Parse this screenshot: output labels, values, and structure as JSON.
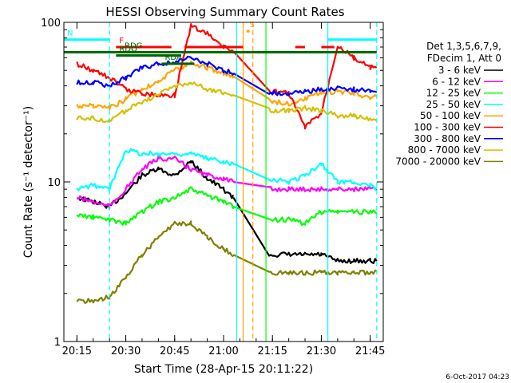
{
  "chart_data": {
    "type": "line",
    "title": "HESSI Observing Summary Count Rates",
    "xlabel": "Start Time (28-Apr-15 20:11:22)",
    "ylabel": "Count Rate (s⁻¹ detector⁻¹)",
    "y_scale": "log",
    "ylim": [
      1,
      100
    ],
    "xlim": [
      "20:11",
      "21:49"
    ],
    "x_ticks": [
      "20:15",
      "20:30",
      "20:45",
      "21:00",
      "21:15",
      "21:30",
      "21:45"
    ],
    "y_ticks": [
      "1",
      "10",
      "100"
    ],
    "grid": false,
    "legend_header": [
      "Det 1,3,5,6,7,9,",
      "FDecim 1, Att 0"
    ],
    "legend_position": "right",
    "timestamp": "6-Oct-2017 04:23",
    "gaps": [
      {
        "from": "21:04",
        "to": "21:13"
      }
    ],
    "series": [
      {
        "name": "3 - 6 keV",
        "color": "#000000",
        "x": [
          "20:15",
          "20:20",
          "20:25",
          "20:30",
          "20:35",
          "20:40",
          "20:45",
          "20:50",
          "20:55",
          "21:00",
          "21:03",
          "21:14",
          "21:20",
          "21:25",
          "21:30",
          "21:35",
          "21:40",
          "21:45",
          "21:47"
        ],
        "values": [
          8.0,
          7.5,
          7.0,
          8.5,
          11.0,
          12.0,
          11.0,
          13.5,
          10.5,
          9.0,
          8.0,
          3.5,
          3.5,
          3.5,
          3.5,
          3.2,
          3.2,
          3.2,
          3.2
        ]
      },
      {
        "name": "6 - 12 keV",
        "color": "#ff00ff",
        "x": [
          "20:15",
          "20:20",
          "20:25",
          "20:30",
          "20:35",
          "20:40",
          "20:45",
          "20:50",
          "20:55",
          "21:00",
          "21:03",
          "21:14",
          "21:20",
          "21:25",
          "21:30",
          "21:35",
          "21:40",
          "21:45",
          "21:47"
        ],
        "values": [
          8.0,
          7.5,
          7.0,
          9.0,
          12.0,
          14.0,
          14.0,
          12.0,
          11.0,
          10.5,
          10.0,
          9.0,
          9.0,
          9.0,
          9.0,
          9.0,
          9.0,
          9.0,
          9.0
        ]
      },
      {
        "name": "12 - 25 keV",
        "color": "#00ff00",
        "x": [
          "20:15",
          "20:20",
          "20:25",
          "20:30",
          "20:35",
          "20:40",
          "20:45",
          "20:50",
          "20:55",
          "21:00",
          "21:03",
          "21:14",
          "21:20",
          "21:25",
          "21:30",
          "21:35",
          "21:40",
          "21:45",
          "21:47"
        ],
        "values": [
          6.2,
          6.0,
          5.8,
          5.5,
          6.5,
          7.5,
          8.0,
          9.0,
          8.2,
          7.5,
          7.0,
          5.8,
          5.8,
          5.5,
          6.5,
          6.5,
          6.5,
          6.5,
          6.5
        ]
      },
      {
        "name": "25 - 50 keV",
        "color": "#00ffff",
        "x": [
          "20:15",
          "20:20",
          "20:25",
          "20:30",
          "20:35",
          "20:40",
          "20:45",
          "20:50",
          "20:55",
          "21:00",
          "21:03",
          "21:14",
          "21:20",
          "21:25",
          "21:30",
          "21:35",
          "21:40",
          "21:45",
          "21:47"
        ],
        "values": [
          9.0,
          9.5,
          9.0,
          16.0,
          15.0,
          15.0,
          15.0,
          15.0,
          14.0,
          13.5,
          13.0,
          10.5,
          10.0,
          11.0,
          13.0,
          10.0,
          10.0,
          9.5,
          9.0
        ]
      },
      {
        "name": "50 - 100 keV",
        "color": "#ffa500",
        "x": [
          "20:15",
          "20:20",
          "20:25",
          "20:30",
          "20:35",
          "20:40",
          "20:45",
          "20:50",
          "20:55",
          "21:00",
          "21:03",
          "21:14",
          "21:20",
          "21:25",
          "21:30",
          "21:35",
          "21:40",
          "21:45",
          "21:47"
        ],
        "values": [
          30.0,
          30.0,
          29.0,
          33.0,
          38.0,
          43.0,
          50.0,
          56.0,
          52.0,
          48.0,
          46.0,
          32.0,
          31.0,
          33.0,
          36.0,
          37.0,
          36.0,
          34.0,
          34.0
        ]
      },
      {
        "name": "100 - 300 keV",
        "color": "#ff0000",
        "x": [
          "20:15",
          "20:20",
          "20:25",
          "20:30",
          "20:35",
          "20:40",
          "20:45",
          "20:50",
          "20:55",
          "21:00",
          "21:03",
          "21:14",
          "21:20",
          "21:25",
          "21:30",
          "21:35",
          "21:40",
          "21:45",
          "21:47"
        ],
        "values": [
          55.0,
          50.0,
          45.0,
          38.0,
          36.0,
          35.0,
          35.0,
          95.0,
          85.0,
          70.0,
          66.0,
          37.0,
          36.0,
          22.0,
          27.0,
          72.0,
          60.0,
          52.0,
          52.0
        ]
      },
      {
        "name": "300 - 800 keV",
        "color": "#0000ff",
        "x": [
          "20:15",
          "20:20",
          "20:25",
          "20:30",
          "20:35",
          "20:40",
          "20:45",
          "20:50",
          "20:55",
          "21:00",
          "21:03",
          "21:14",
          "21:20",
          "21:25",
          "21:30",
          "21:35",
          "21:40",
          "21:45",
          "21:47"
        ],
        "values": [
          42.0,
          42.0,
          40.0,
          45.0,
          52.0,
          55.0,
          56.0,
          60.0,
          55.0,
          50.0,
          48.0,
          36.0,
          36.0,
          37.0,
          38.0,
          39.0,
          38.0,
          37.0,
          37.0
        ]
      },
      {
        "name": "800 - 7000 keV",
        "color": "#d4c000",
        "x": [
          "20:15",
          "20:20",
          "20:25",
          "20:30",
          "20:35",
          "20:40",
          "20:45",
          "20:50",
          "20:55",
          "21:00",
          "21:03",
          "21:14",
          "21:20",
          "21:25",
          "21:30",
          "21:35",
          "21:40",
          "21:45",
          "21:47"
        ],
        "values": [
          25.0,
          25.0,
          24.0,
          28.0,
          32.0,
          35.0,
          40.0,
          42.0,
          38.0,
          36.0,
          35.0,
          28.0,
          28.0,
          29.0,
          28.0,
          26.0,
          26.0,
          25.0,
          25.0
        ]
      },
      {
        "name": "7000 - 20000 keV",
        "color": "#808000",
        "x": [
          "20:15",
          "20:20",
          "20:25",
          "20:30",
          "20:35",
          "20:40",
          "20:45",
          "20:50",
          "20:55",
          "21:00",
          "21:03",
          "21:14",
          "21:20",
          "21:25",
          "21:30",
          "21:35",
          "21:40",
          "21:45",
          "21:47"
        ],
        "values": [
          1.8,
          1.8,
          1.9,
          2.5,
          3.5,
          4.5,
          5.5,
          5.5,
          4.5,
          3.8,
          3.5,
          2.7,
          2.7,
          2.7,
          2.7,
          2.7,
          2.7,
          2.7,
          2.7
        ]
      }
    ],
    "flag_bars": [
      {
        "label": "N",
        "color": "#00ffff",
        "segments": [
          [
            "20:11",
            "20:25"
          ],
          [
            "21:32",
            "21:47"
          ]
        ],
        "level": 78
      },
      {
        "label": "F",
        "color": "#ff0000",
        "segments": [
          [
            "20:27",
            "20:44"
          ],
          [
            "20:48",
            "21:06"
          ],
          [
            "21:22",
            "21:25"
          ],
          [
            "21:30",
            "21:34"
          ]
        ],
        "level": 70
      },
      {
        "label": "S",
        "color": "#ffa500",
        "segments": [
          [
            "21:07",
            "21:08"
          ]
        ],
        "level": 88
      },
      {
        "label": "RDO",
        "color": "#006400",
        "segments": [
          [
            "20:27",
            "20:47"
          ]
        ],
        "level": 62
      },
      {
        "label": "RDA",
        "color": "#006400",
        "segments": [
          [
            "20:41",
            "20:51"
          ]
        ],
        "level": 55
      },
      {
        "label": "RDG",
        "color": "#006400",
        "segments": [
          [
            "20:11",
            "21:47"
          ]
        ],
        "level": 65
      }
    ],
    "vlines": [
      {
        "t": "20:25",
        "color": "#00ffff",
        "style": "dashed"
      },
      {
        "t": "21:04",
        "color": "#00ffff",
        "style": "solid"
      },
      {
        "t": "21:06",
        "color": "#ffa500",
        "style": "solid"
      },
      {
        "t": "21:09",
        "color": "#ffa500",
        "style": "dashed"
      },
      {
        "t": "21:13",
        "color": "#00ff00",
        "style": "solid"
      },
      {
        "t": "21:32",
        "color": "#00ffff",
        "style": "solid"
      },
      {
        "t": "21:47",
        "color": "#00ffff",
        "style": "dashed"
      }
    ]
  }
}
